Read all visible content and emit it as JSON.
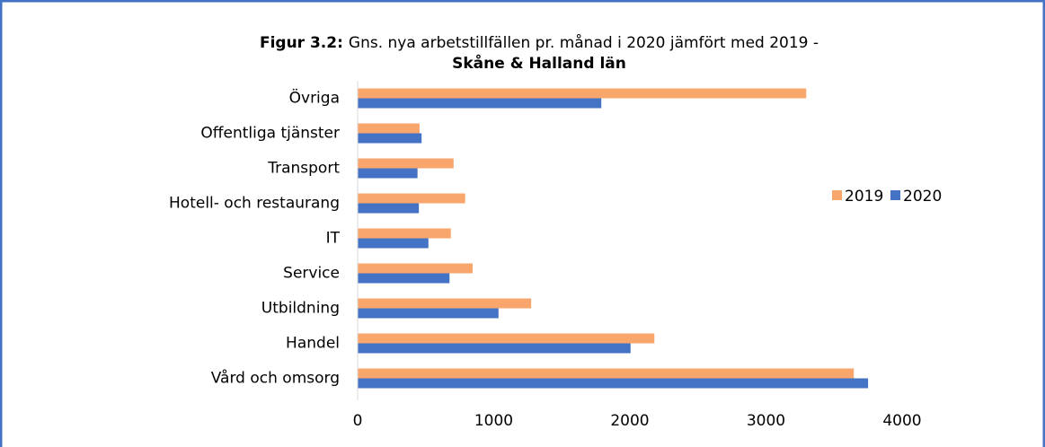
{
  "chart_data": {
    "type": "hbar",
    "title_prefix": "Figur 3.2:",
    "title": "Gns. nya arbetstillfällen pr. månad i 2020 jämfört med 2019 -",
    "title_line2": "Skåne & Halland län",
    "categories": [
      "Övriga",
      "Offentliga tjänster",
      "Transport",
      "Hotell- och restaurang",
      "IT",
      "Service",
      "Utbildning",
      "Handel",
      "Vård och omsorg"
    ],
    "series": [
      {
        "name": "2019",
        "color": "#f9a66c",
        "values": [
          3295,
          455,
          705,
          790,
          685,
          845,
          1275,
          2180,
          3645
        ]
      },
      {
        "name": "2020",
        "color": "#4472c4",
        "values": [
          1790,
          470,
          440,
          450,
          520,
          675,
          1035,
          2005,
          3750
        ]
      }
    ],
    "xlim": [
      0,
      4000
    ],
    "xticks": [
      0,
      1000,
      2000,
      3000,
      4000
    ],
    "grid": false,
    "legend": "right"
  }
}
